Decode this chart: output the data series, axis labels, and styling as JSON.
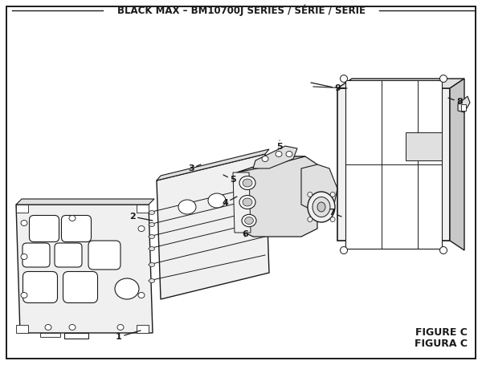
{
  "title": "BLACK MAX – BM10700J SERIES / SÉRIE / SERIE",
  "figure_label_1": "FIGURE C",
  "figure_label_2": "FIGURA C",
  "bg_color": "#ffffff",
  "lc": "#1a1a1a",
  "fill_light": "#f0f0f0",
  "fill_mid": "#e0e0e0",
  "fill_dark": "#c8c8c8",
  "title_fontsize": 8.5,
  "label_fontsize": 8,
  "fig_label_fontsize": 9
}
